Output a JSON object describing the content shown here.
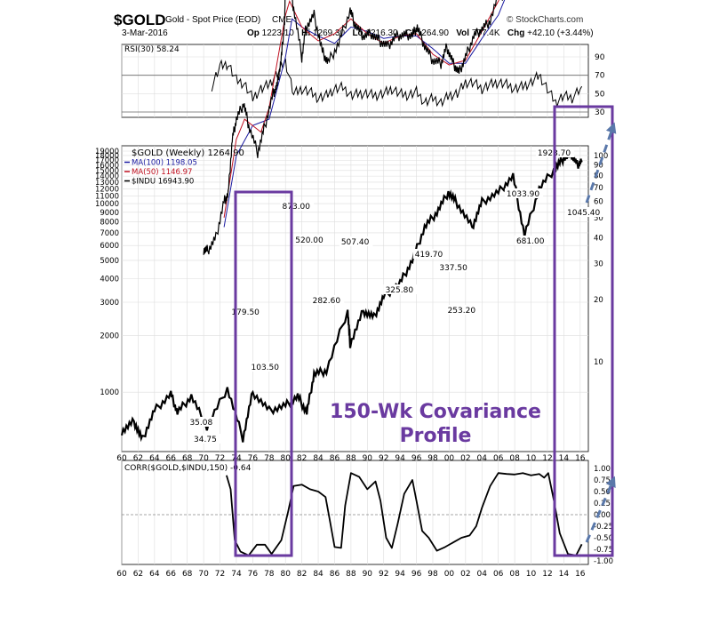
{
  "header": {
    "symbol": "$GOLD",
    "description": "Gold - Spot Price (EOD)",
    "exchange": "CME",
    "source": "© StockCharts.com",
    "date": "3-Mar-2016",
    "ohlc": {
      "op_label": "Op",
      "op": "1223.10",
      "hi_label": "Hi",
      "hi": "1269.30",
      "lo_label": "Lo",
      "lo": "1216.30",
      "cl_label": "Cl",
      "cl": "1264.90",
      "vol_label": "Vol",
      "vol": "777.4K",
      "chg_label": "Chg",
      "chg": "+42.10 (+3.44%)"
    }
  },
  "colors": {
    "gold_price": "#000000",
    "ma100": "#1a1aa0",
    "ma50": "#c01020",
    "indu": "#000000",
    "annotation_purple": "#6a3aa0",
    "arrow_blue": "#5a78aa",
    "grid": "#dddddd"
  },
  "annotation": {
    "line1": "150-Wk Covariance",
    "line2": "Profile"
  },
  "chart_data": [
    {
      "type": "line",
      "panel": "RSI",
      "legend": "RSI(30) 58.24",
      "ylim": [
        30,
        90
      ],
      "yticks": [
        90,
        70,
        50,
        30
      ],
      "reference_lines": [
        70,
        30
      ],
      "x": [
        1971,
        1972,
        1973,
        1974,
        1975,
        1976,
        1977,
        1978,
        1979,
        1980,
        1981,
        1982,
        1983,
        1984,
        1985,
        1986,
        1987,
        1988,
        1989,
        1990,
        1991,
        1992,
        1993,
        1994,
        1995,
        1996,
        1997,
        1998,
        1999,
        2000,
        2001,
        2002,
        2003,
        2004,
        2005,
        2006,
        2007,
        2008,
        2009,
        2010,
        2011,
        2012,
        2013,
        2014,
        2015,
        2016.2
      ],
      "values": [
        58,
        80,
        82,
        65,
        60,
        45,
        55,
        60,
        72,
        85,
        50,
        55,
        52,
        45,
        48,
        55,
        57,
        48,
        50,
        50,
        48,
        50,
        55,
        50,
        48,
        52,
        40,
        45,
        40,
        48,
        50,
        62,
        62,
        55,
        60,
        62,
        60,
        55,
        58,
        62,
        70,
        55,
        40,
        48,
        45,
        58
      ]
    },
    {
      "type": "line",
      "panel": "Price",
      "scale": "log",
      "legends": [
        "$GOLD (Weekly) 1264.90",
        "MA(100) 1198.05",
        "MA(50) 1146.97",
        "$INDU 16943.90"
      ],
      "ylim": [
        500,
        19000
      ],
      "yticks_left": [
        19000,
        18000,
        17000,
        16000,
        15000,
        14000,
        13000,
        12000,
        11000,
        10000,
        9000,
        8000,
        7000,
        6000,
        5000,
        4000,
        3000,
        2000,
        1000
      ],
      "yticks_right": [
        100,
        90,
        80,
        70,
        60,
        50,
        40,
        30,
        20,
        10
      ],
      "xlim": [
        1960,
        2017
      ],
      "x_tick_labels": [
        "60",
        "62",
        "64",
        "66",
        "68",
        "70",
        "72",
        "74",
        "76",
        "78",
        "80",
        "82",
        "84",
        "86",
        "88",
        "90",
        "92",
        "94",
        "96",
        "98",
        "00",
        "02",
        "04",
        "06",
        "08",
        "10",
        "12",
        "14",
        "16"
      ],
      "gold_annotations": [
        "34.75",
        "35.08",
        "179.50",
        "103.50",
        "873.00",
        "520.00",
        "282.60",
        "507.40",
        "325.80",
        "419.70",
        "337.50",
        "253.20",
        "1033.90",
        "681.00",
        "1923.70",
        "1045.40"
      ],
      "series": [
        {
          "name": "$GOLD (Weekly)",
          "x": [
            1970.0,
            1970.5,
            1971.5,
            1972.5,
            1973.0,
            1973.5,
            1974.0,
            1974.9,
            1975.5,
            1976.6,
            1977.5,
            1978.5,
            1979.0,
            1979.5,
            1979.9,
            1980.05,
            1980.5,
            1981.0,
            1982.0,
            1982.5,
            1983.5,
            1984.5,
            1985.2,
            1986.5,
            1987.9,
            1988.5,
            1989.5,
            1990.5,
            1991.5,
            1992.5,
            1993.5,
            1994.5,
            1995.5,
            1996.1,
            1997.0,
            1998.0,
            1999.0,
            1999.7,
            2000.5,
            2001.2,
            2002.0,
            2003.0,
            2004.0,
            2005.0,
            2006.3,
            2006.5,
            2007.5,
            2008.2,
            2008.8,
            2009.5,
            2010.5,
            2011.0,
            2011.7,
            2012.5,
            2013.3,
            2013.9,
            2014.5,
            2015.2,
            2015.9,
            2016.2
          ],
          "values": [
            35.08,
            34.75,
            40,
            60,
            65,
            120,
            150,
            179.5,
            140,
            103.5,
            140,
            200,
            220,
            300,
            450,
            873,
            650,
            520,
            300,
            420,
            480,
            320,
            282.6,
            350,
            507.4,
            430,
            380,
            390,
            360,
            340,
            380,
            385,
            385,
            419.7,
            340,
            290,
            280,
            337.5,
            280,
            253.2,
            300,
            380,
            410,
            450,
            650,
            600,
            700,
            950,
            720,
            950,
            1200,
            1400,
            1923.7,
            1650,
            1400,
            1220,
            1300,
            1200,
            1045.4,
            1264.9
          ]
        },
        {
          "name": "MA(100)",
          "x": [
            1972.5,
            1974,
            1976,
            1978,
            1980,
            1980.8,
            1982,
            1984,
            1986,
            1988,
            1990,
            1992,
            1994,
            1996,
            1998,
            2000,
            2002,
            2004,
            2006,
            2008,
            2010,
            2012,
            2013,
            2014,
            2015,
            2016.2
          ],
          "values": [
            45,
            100,
            140,
            150,
            300,
            460,
            420,
            380,
            350,
            420,
            400,
            370,
            380,
            380,
            330,
            280,
            280,
            370,
            480,
            750,
            1050,
            1500,
            1560,
            1380,
            1250,
            1198.05
          ]
        },
        {
          "name": "MA(50)",
          "x": [
            1972.5,
            1974,
            1975,
            1977,
            1978,
            1980,
            1980.5,
            1982,
            1984,
            1986,
            1988,
            1990,
            1992,
            1994,
            1996,
            1998,
            2000,
            2002,
            2004,
            2006,
            2008,
            2010,
            2012,
            2013,
            2014,
            2015,
            2016.2
          ],
          "values": [
            50,
            120,
            150,
            130,
            170,
            480,
            560,
            420,
            360,
            390,
            460,
            390,
            350,
            380,
            390,
            310,
            275,
            290,
            400,
            560,
            850,
            1150,
            1650,
            1500,
            1300,
            1180,
            1146.97
          ]
        },
        {
          "name": "$INDU",
          "x": [
            1960,
            1961.5,
            1962.5,
            1964,
            1966,
            1966.8,
            1968.5,
            1970.4,
            1972.9,
            1974.8,
            1976,
            1978,
            1980,
            1981.5,
            1982.6,
            1983.5,
            1985,
            1987.6,
            1987.9,
            1989.5,
            1990.8,
            1992,
            1994,
            1995.5,
            1997,
            1998.5,
            1999.9,
            2001,
            2002.8,
            2004,
            2006,
            2007.8,
            2009.2,
            2011,
            2013,
            2014,
            2015,
            2015.7,
            2016.2
          ],
          "values": [
            620,
            700,
            560,
            800,
            980,
            780,
            950,
            650,
            1050,
            570,
            1000,
            800,
            850,
            950,
            780,
            1250,
            1300,
            2700,
            1800,
            2700,
            2500,
            3200,
            3800,
            5000,
            7500,
            9000,
            11500,
            10000,
            7500,
            10200,
            11500,
            14000,
            6800,
            12000,
            15500,
            17500,
            18000,
            16000,
            16943.9
          ]
        }
      ]
    },
    {
      "type": "line",
      "panel": "Correlation",
      "legend": "CORR($GOLD,$INDU,150) -0.64",
      "ylim": [
        -1.0,
        1.0
      ],
      "yticks": [
        "1.00",
        "0.75",
        "0.50",
        "0.25",
        "0.00",
        "-0.25",
        "-0.50",
        "-0.75",
        "-1.00"
      ],
      "x_tick_labels": [
        "60",
        "62",
        "64",
        "66",
        "68",
        "70",
        "72",
        "74",
        "76",
        "78",
        "80",
        "82",
        "84",
        "86",
        "88",
        "90",
        "92",
        "94",
        "96",
        "98",
        "00",
        "02",
        "04",
        "06",
        "08",
        "10",
        "12",
        "14",
        "16"
      ],
      "x": [
        1972.8,
        1973.3,
        1973.8,
        1974.5,
        1975.5,
        1976.5,
        1977.5,
        1978.3,
        1979.5,
        1980.3,
        1981,
        1982,
        1983,
        1984,
        1984.9,
        1985.4,
        1986,
        1986.8,
        1987.3,
        1988,
        1989,
        1990,
        1991,
        1991.6,
        1992.3,
        1993,
        1993.7,
        1994.5,
        1995.5,
        1996,
        1996.7,
        1997.5,
        1998.5,
        1999.5,
        2000.5,
        2001.5,
        2002.5,
        2003.3,
        2004,
        2005,
        2006,
        2007,
        2008,
        2009,
        2010,
        2011,
        2011.6,
        2012.1,
        2012.8,
        2013.5,
        2014.5,
        2015.5,
        2016.2
      ],
      "values": [
        0.85,
        0.55,
        -0.55,
        -0.8,
        -0.88,
        -0.65,
        -0.65,
        -0.85,
        -0.55,
        0.05,
        0.62,
        0.65,
        0.55,
        0.5,
        0.38,
        -0.1,
        -0.7,
        -0.72,
        0.2,
        0.9,
        0.82,
        0.55,
        0.72,
        0.3,
        -0.5,
        -0.72,
        -0.2,
        0.45,
        0.75,
        0.3,
        -0.35,
        -0.5,
        -0.78,
        -0.7,
        -0.6,
        -0.5,
        -0.45,
        -0.25,
        0.15,
        0.62,
        0.9,
        0.88,
        0.87,
        0.9,
        0.85,
        0.88,
        0.8,
        0.9,
        0.3,
        -0.4,
        -0.85,
        -0.88,
        -0.64
      ]
    }
  ]
}
